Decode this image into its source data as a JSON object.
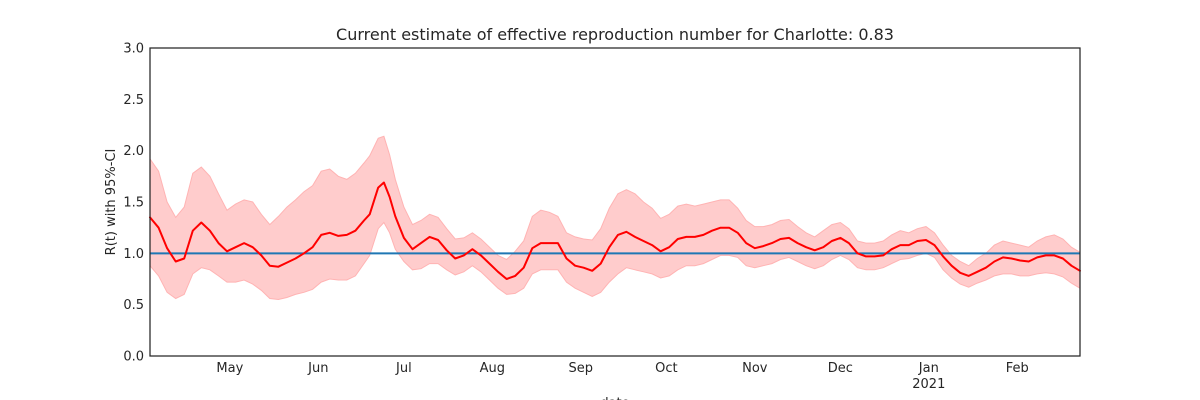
{
  "chart_data": {
    "type": "line",
    "title": "Current estimate of effective reproduction number for Charlotte: 0.83",
    "ylabel": "R(t) with 95%-CI",
    "xlabel": "date",
    "x_start": "2020-04-03",
    "x_end": "2021-02-23",
    "ylim": [
      0,
      3
    ],
    "yticks": [
      "0.0",
      "0.5",
      "1.0",
      "1.5",
      "2.0",
      "2.5",
      "3.0"
    ],
    "xticks": [
      {
        "date": "2020-05-01",
        "label": "May",
        "sublabel": ""
      },
      {
        "date": "2020-06-01",
        "label": "Jun",
        "sublabel": ""
      },
      {
        "date": "2020-07-01",
        "label": "Jul",
        "sublabel": ""
      },
      {
        "date": "2020-08-01",
        "label": "Aug",
        "sublabel": ""
      },
      {
        "date": "2020-09-01",
        "label": "Sep",
        "sublabel": ""
      },
      {
        "date": "2020-10-01",
        "label": "Oct",
        "sublabel": ""
      },
      {
        "date": "2020-11-01",
        "label": "Nov",
        "sublabel": ""
      },
      {
        "date": "2020-12-01",
        "label": "Dec",
        "sublabel": ""
      },
      {
        "date": "2021-01-01",
        "label": "Jan",
        "sublabel": "2021"
      },
      {
        "date": "2021-02-01",
        "label": "Feb",
        "sublabel": ""
      }
    ],
    "reference_line": 1.0,
    "colors": {
      "estimate": "#ff0000",
      "ci_band": "#ffcccc",
      "reference": "#1f77b4"
    },
    "grid": false,
    "series": [
      {
        "points": [
          [
            "2020-04-03",
            1.35,
            1.92,
            0.88
          ],
          [
            "2020-04-06",
            1.25,
            1.8,
            0.78
          ],
          [
            "2020-04-09",
            1.05,
            1.5,
            0.62
          ],
          [
            "2020-04-12",
            0.92,
            1.35,
            0.56
          ],
          [
            "2020-04-15",
            0.95,
            1.45,
            0.6
          ],
          [
            "2020-04-18",
            1.22,
            1.78,
            0.8
          ],
          [
            "2020-04-21",
            1.3,
            1.84,
            0.86
          ],
          [
            "2020-04-24",
            1.22,
            1.75,
            0.84
          ],
          [
            "2020-04-27",
            1.1,
            1.58,
            0.78
          ],
          [
            "2020-04-30",
            1.02,
            1.42,
            0.72
          ],
          [
            "2020-05-03",
            1.06,
            1.48,
            0.72
          ],
          [
            "2020-05-06",
            1.1,
            1.52,
            0.74
          ],
          [
            "2020-05-09",
            1.06,
            1.5,
            0.7
          ],
          [
            "2020-05-12",
            0.98,
            1.38,
            0.64
          ],
          [
            "2020-05-15",
            0.88,
            1.28,
            0.56
          ],
          [
            "2020-05-18",
            0.87,
            1.36,
            0.55
          ],
          [
            "2020-05-21",
            0.91,
            1.45,
            0.57
          ],
          [
            "2020-05-24",
            0.95,
            1.52,
            0.6
          ],
          [
            "2020-05-27",
            1.0,
            1.6,
            0.62
          ],
          [
            "2020-05-30",
            1.06,
            1.66,
            0.65
          ],
          [
            "2020-06-02",
            1.18,
            1.8,
            0.72
          ],
          [
            "2020-06-05",
            1.2,
            1.82,
            0.75
          ],
          [
            "2020-06-08",
            1.17,
            1.75,
            0.74
          ],
          [
            "2020-06-11",
            1.18,
            1.72,
            0.74
          ],
          [
            "2020-06-14",
            1.22,
            1.78,
            0.78
          ],
          [
            "2020-06-17",
            1.32,
            1.88,
            0.9
          ],
          [
            "2020-06-19",
            1.38,
            1.95,
            0.98
          ],
          [
            "2020-06-22",
            1.64,
            2.12,
            1.24
          ],
          [
            "2020-06-24",
            1.69,
            2.14,
            1.3
          ],
          [
            "2020-06-26",
            1.55,
            1.96,
            1.2
          ],
          [
            "2020-06-28",
            1.36,
            1.72,
            1.04
          ],
          [
            "2020-07-01",
            1.15,
            1.45,
            0.92
          ],
          [
            "2020-07-04",
            1.04,
            1.28,
            0.84
          ],
          [
            "2020-07-07",
            1.1,
            1.32,
            0.85
          ],
          [
            "2020-07-10",
            1.16,
            1.38,
            0.9
          ],
          [
            "2020-07-13",
            1.13,
            1.35,
            0.9
          ],
          [
            "2020-07-16",
            1.03,
            1.24,
            0.84
          ],
          [
            "2020-07-19",
            0.95,
            1.14,
            0.79
          ],
          [
            "2020-07-22",
            0.98,
            1.15,
            0.82
          ],
          [
            "2020-07-25",
            1.04,
            1.2,
            0.88
          ],
          [
            "2020-07-28",
            0.98,
            1.14,
            0.82
          ],
          [
            "2020-07-31",
            0.9,
            1.06,
            0.74
          ],
          [
            "2020-08-03",
            0.82,
            0.98,
            0.66
          ],
          [
            "2020-08-06",
            0.75,
            0.94,
            0.6
          ],
          [
            "2020-08-09",
            0.78,
            1.02,
            0.61
          ],
          [
            "2020-08-12",
            0.86,
            1.12,
            0.66
          ],
          [
            "2020-08-15",
            1.05,
            1.36,
            0.8
          ],
          [
            "2020-08-18",
            1.1,
            1.42,
            0.84
          ],
          [
            "2020-08-21",
            1.1,
            1.4,
            0.84
          ],
          [
            "2020-08-24",
            1.1,
            1.36,
            0.84
          ],
          [
            "2020-08-27",
            0.95,
            1.2,
            0.72
          ],
          [
            "2020-08-30",
            0.88,
            1.16,
            0.66
          ],
          [
            "2020-09-02",
            0.86,
            1.14,
            0.62
          ],
          [
            "2020-09-05",
            0.83,
            1.13,
            0.58
          ],
          [
            "2020-09-08",
            0.9,
            1.24,
            0.62
          ],
          [
            "2020-09-11",
            1.06,
            1.44,
            0.72
          ],
          [
            "2020-09-14",
            1.18,
            1.58,
            0.8
          ],
          [
            "2020-09-17",
            1.21,
            1.62,
            0.86
          ],
          [
            "2020-09-20",
            1.16,
            1.58,
            0.84
          ],
          [
            "2020-09-23",
            1.12,
            1.5,
            0.82
          ],
          [
            "2020-09-26",
            1.08,
            1.44,
            0.8
          ],
          [
            "2020-09-29",
            1.02,
            1.34,
            0.76
          ],
          [
            "2020-10-02",
            1.06,
            1.38,
            0.78
          ],
          [
            "2020-10-05",
            1.14,
            1.46,
            0.84
          ],
          [
            "2020-10-08",
            1.16,
            1.48,
            0.88
          ],
          [
            "2020-10-11",
            1.16,
            1.46,
            0.88
          ],
          [
            "2020-10-14",
            1.18,
            1.48,
            0.9
          ],
          [
            "2020-10-17",
            1.22,
            1.5,
            0.94
          ],
          [
            "2020-10-20",
            1.25,
            1.52,
            0.98
          ],
          [
            "2020-10-23",
            1.25,
            1.52,
            0.98
          ],
          [
            "2020-10-26",
            1.2,
            1.44,
            0.96
          ],
          [
            "2020-10-29",
            1.1,
            1.32,
            0.88
          ],
          [
            "2020-11-01",
            1.05,
            1.26,
            0.86
          ],
          [
            "2020-11-04",
            1.07,
            1.26,
            0.88
          ],
          [
            "2020-11-07",
            1.1,
            1.28,
            0.9
          ],
          [
            "2020-11-10",
            1.14,
            1.32,
            0.94
          ],
          [
            "2020-11-13",
            1.15,
            1.33,
            0.96
          ],
          [
            "2020-11-16",
            1.1,
            1.26,
            0.92
          ],
          [
            "2020-11-19",
            1.06,
            1.2,
            0.88
          ],
          [
            "2020-11-22",
            1.03,
            1.16,
            0.85
          ],
          [
            "2020-11-25",
            1.06,
            1.22,
            0.88
          ],
          [
            "2020-11-28",
            1.12,
            1.28,
            0.94
          ],
          [
            "2020-12-01",
            1.15,
            1.3,
            0.98
          ],
          [
            "2020-12-04",
            1.1,
            1.24,
            0.94
          ],
          [
            "2020-12-07",
            1.0,
            1.12,
            0.86
          ],
          [
            "2020-12-10",
            0.97,
            1.1,
            0.84
          ],
          [
            "2020-12-13",
            0.97,
            1.1,
            0.84
          ],
          [
            "2020-12-16",
            0.98,
            1.12,
            0.86
          ],
          [
            "2020-12-19",
            1.04,
            1.18,
            0.9
          ],
          [
            "2020-12-22",
            1.08,
            1.22,
            0.94
          ],
          [
            "2020-12-25",
            1.08,
            1.2,
            0.95
          ],
          [
            "2020-12-28",
            1.12,
            1.24,
            0.98
          ],
          [
            "2020-12-31",
            1.13,
            1.26,
            1.0
          ],
          [
            "2021-01-03",
            1.08,
            1.2,
            0.96
          ],
          [
            "2021-01-06",
            0.97,
            1.08,
            0.84
          ],
          [
            "2021-01-09",
            0.88,
            0.98,
            0.76
          ],
          [
            "2021-01-12",
            0.81,
            0.92,
            0.7
          ],
          [
            "2021-01-15",
            0.78,
            0.88,
            0.67
          ],
          [
            "2021-01-18",
            0.82,
            0.95,
            0.71
          ],
          [
            "2021-01-21",
            0.86,
            1.0,
            0.74
          ],
          [
            "2021-01-24",
            0.92,
            1.08,
            0.78
          ],
          [
            "2021-01-27",
            0.96,
            1.12,
            0.8
          ],
          [
            "2021-01-30",
            0.95,
            1.1,
            0.8
          ],
          [
            "2021-02-02",
            0.93,
            1.08,
            0.78
          ],
          [
            "2021-02-05",
            0.92,
            1.06,
            0.78
          ],
          [
            "2021-02-08",
            0.96,
            1.12,
            0.8
          ],
          [
            "2021-02-11",
            0.98,
            1.16,
            0.81
          ],
          [
            "2021-02-14",
            0.98,
            1.18,
            0.8
          ],
          [
            "2021-02-17",
            0.95,
            1.14,
            0.77
          ],
          [
            "2021-02-20",
            0.88,
            1.06,
            0.71
          ],
          [
            "2021-02-23",
            0.83,
            1.01,
            0.66
          ]
        ]
      }
    ]
  }
}
